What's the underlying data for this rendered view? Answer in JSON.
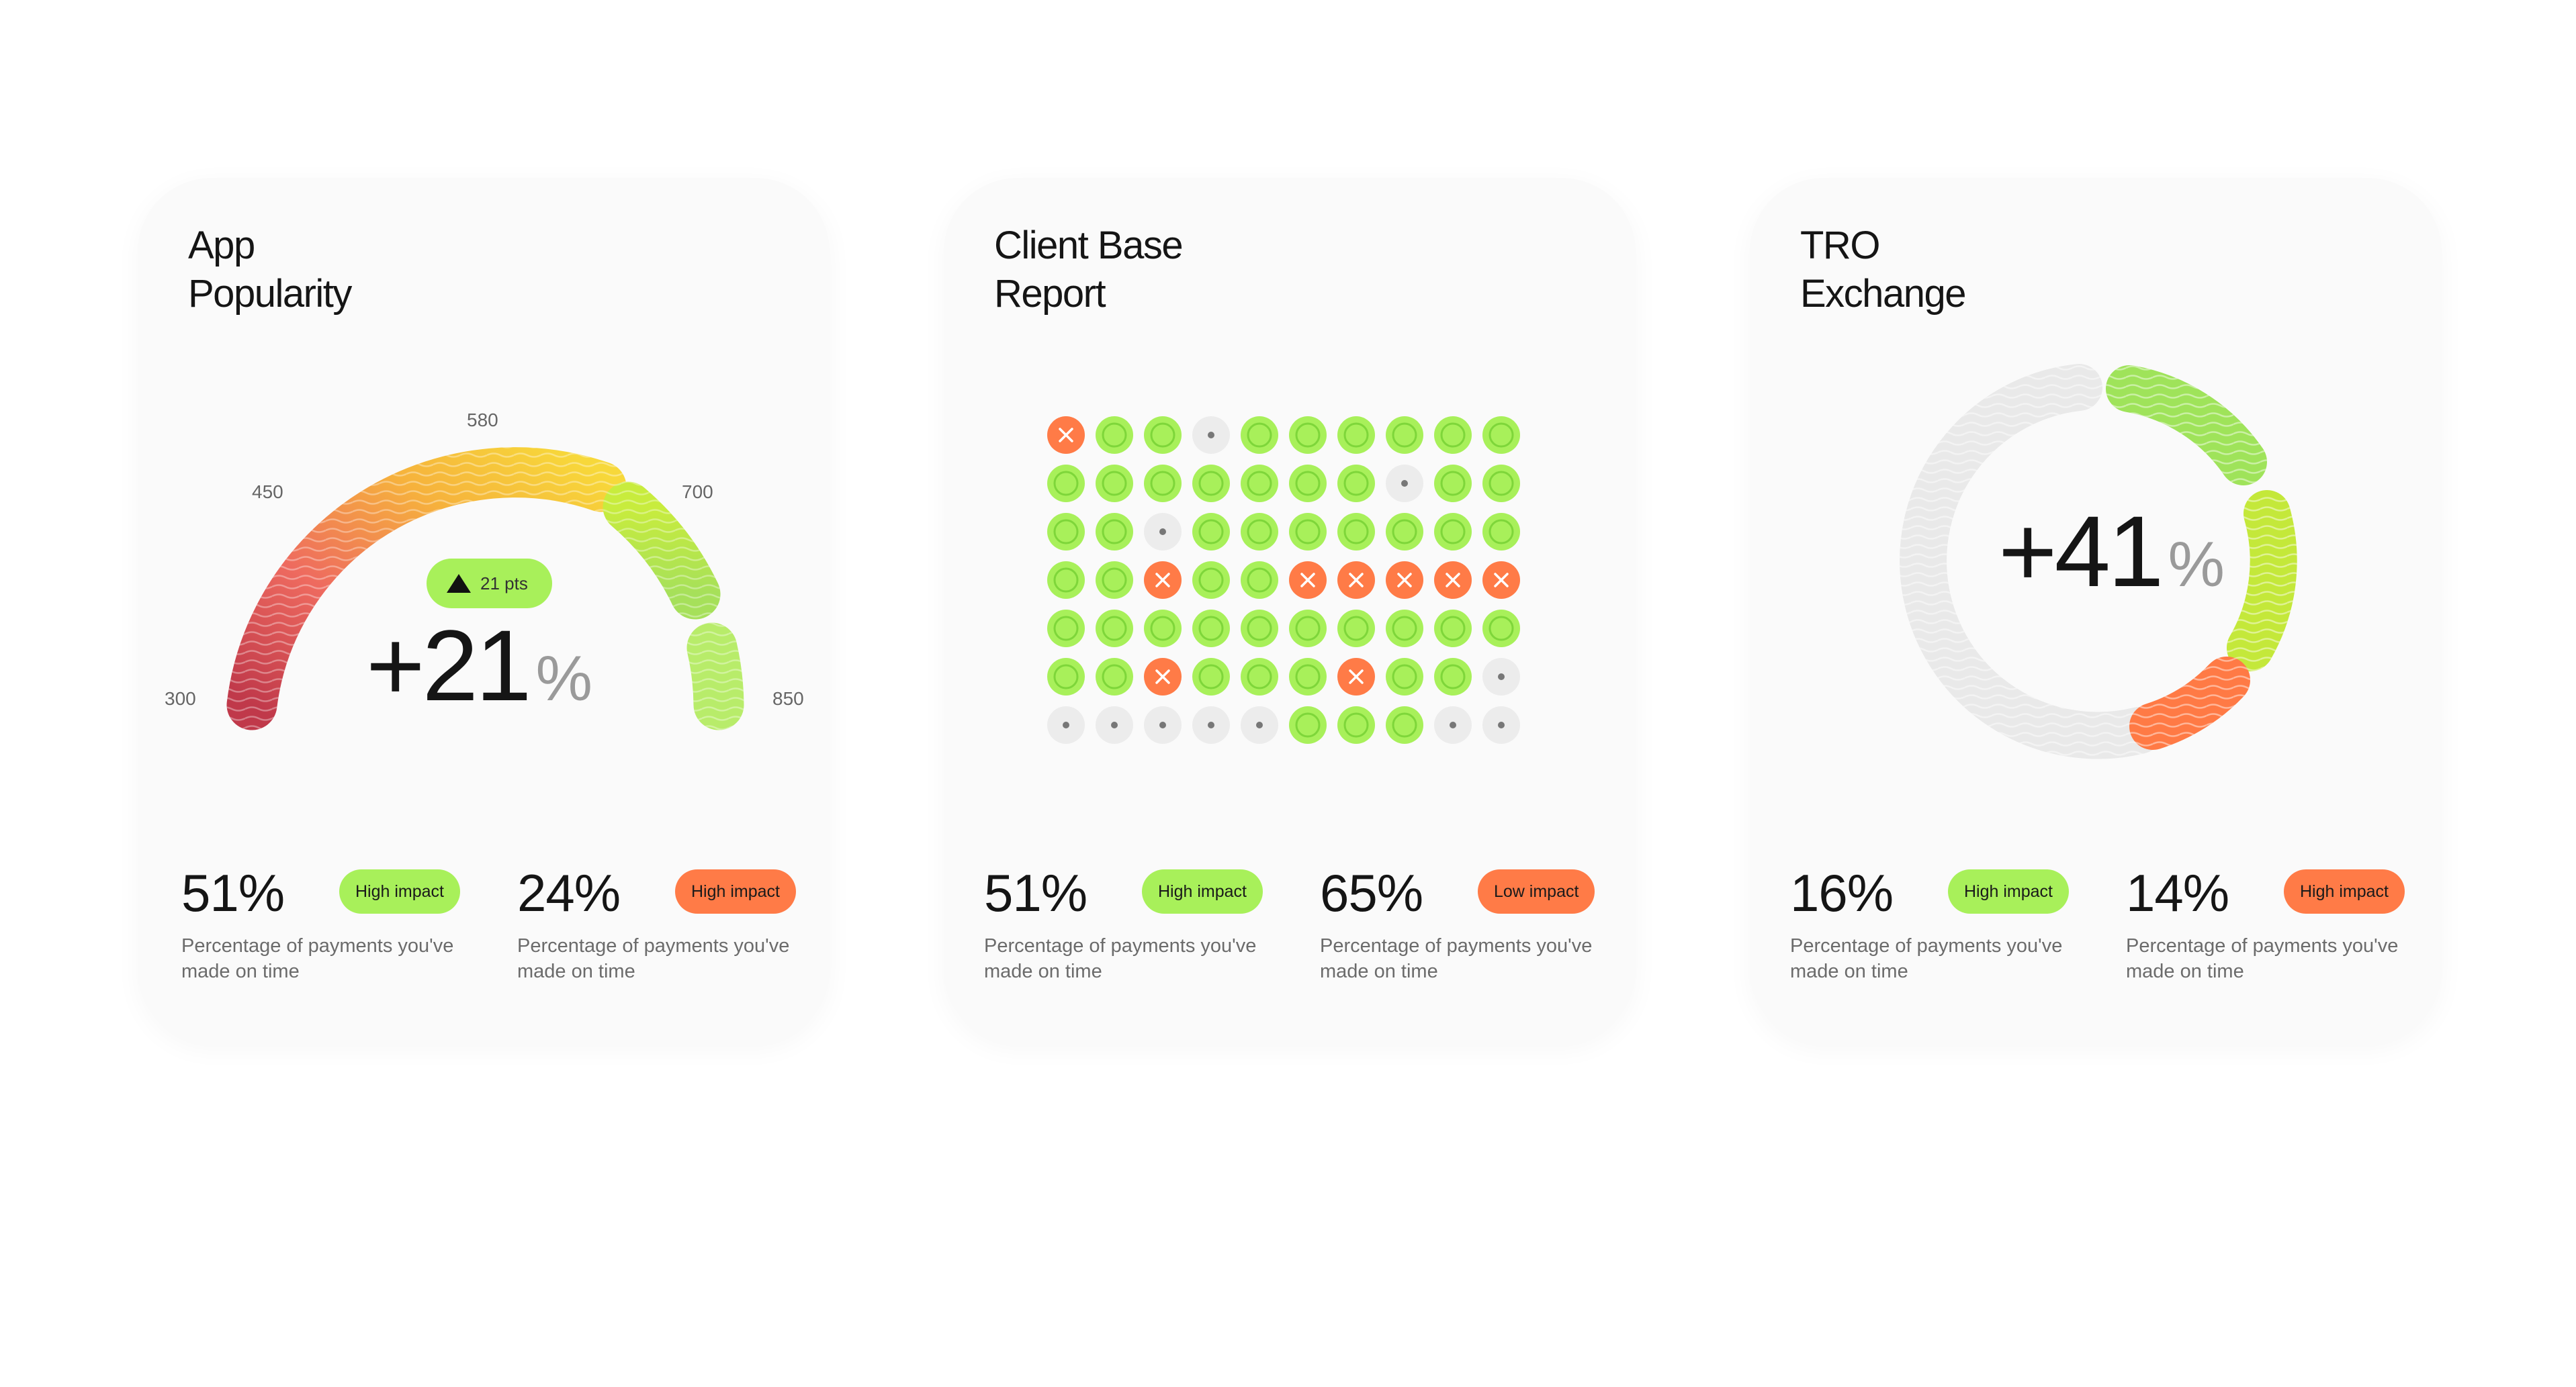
{
  "cards": [
    {
      "title_line1": "App",
      "title_line2": "Popularity",
      "gauge": {
        "value": "+21",
        "unit": "%",
        "pill": "21 pts",
        "labels": [
          "300",
          "450",
          "580",
          "700",
          "850"
        ]
      },
      "stats": [
        {
          "value": "51%",
          "badge": "High impact",
          "desc": "Percentage of payments you've made on time"
        },
        {
          "value": "24%",
          "badge": "High impact",
          "desc": "Percentage of payments you've made on time"
        }
      ]
    },
    {
      "title_line1": "Client Base",
      "title_line2": "Report",
      "dot_grid": [
        [
          "x",
          "g",
          "g",
          "d",
          "g",
          "g",
          "g",
          "g",
          "g",
          "g"
        ],
        [
          "g",
          "g",
          "g",
          "g",
          "g",
          "g",
          "g",
          "d",
          "g",
          "g"
        ],
        [
          "g",
          "g",
          "d",
          "g",
          "g",
          "g",
          "g",
          "g",
          "g",
          "g"
        ],
        [
          "g",
          "g",
          "x",
          "g",
          "g",
          "x",
          "x",
          "x",
          "x",
          "x"
        ],
        [
          "g",
          "g",
          "g",
          "g",
          "g",
          "g",
          "g",
          "g",
          "g",
          "g"
        ],
        [
          "g",
          "g",
          "x",
          "g",
          "g",
          "g",
          "x",
          "g",
          "g",
          "d"
        ],
        [
          "d",
          "d",
          "d",
          "d",
          "d",
          "g",
          "g",
          "g",
          "d",
          "d"
        ]
      ],
      "stats": [
        {
          "value": "51%",
          "badge": "High impact",
          "desc": "Percentage of payments you've made on time"
        },
        {
          "value": "65%",
          "badge": "Low impact",
          "desc": "Percentage of payments you've made on time"
        }
      ]
    },
    {
      "title_line1": "TRO",
      "title_line2": "Exchange",
      "donut": {
        "value": "+41",
        "unit": "%"
      },
      "stats": [
        {
          "value": "16%",
          "badge": "High impact",
          "desc": "Percentage of payments you've made on time"
        },
        {
          "value": "14%",
          "badge": "High impact",
          "desc": "Percentage of payments you've made on time"
        }
      ]
    }
  ],
  "colors": {
    "green": "#a8f05a",
    "green_ring": "#7ed63a",
    "orange": "#ff7b47",
    "gray_dot": "#ececec",
    "card_bg": "#fafafa"
  }
}
